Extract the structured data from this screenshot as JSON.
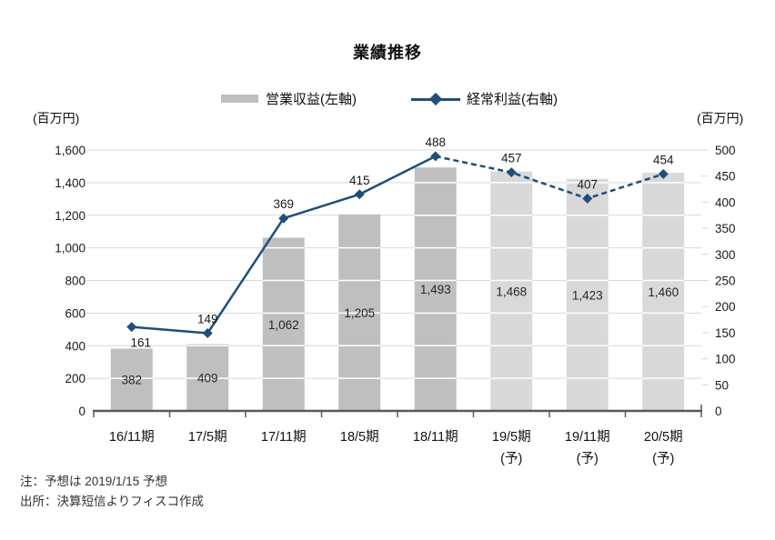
{
  "chart_data": {
    "type": "combo-bar-line",
    "title": "業績推移",
    "categories": [
      {
        "label": "16/11期",
        "sub": ""
      },
      {
        "label": "17/5期",
        "sub": ""
      },
      {
        "label": "17/11期",
        "sub": ""
      },
      {
        "label": "18/5期",
        "sub": ""
      },
      {
        "label": "18/11期",
        "sub": ""
      },
      {
        "label": "19/5期",
        "sub": "(予)"
      },
      {
        "label": "19/11期",
        "sub": "(予)"
      },
      {
        "label": "20/5期",
        "sub": "(予)"
      }
    ],
    "series": [
      {
        "name": "営業収益(左軸)",
        "type": "bar",
        "axis": "left",
        "values": [
          382,
          409,
          1062,
          1205,
          1493,
          1468,
          1423,
          1460
        ],
        "forecast_from_index": 5,
        "color_actual": "#bfbfbf",
        "color_forecast": "#d9d9d9"
      },
      {
        "name": "経常利益(右軸)",
        "type": "line",
        "axis": "right",
        "values": [
          161,
          149,
          369,
          415,
          488,
          457,
          407,
          454
        ],
        "dashed_from_index": 4,
        "label_below_indices": [
          0
        ],
        "color": "#1f4e79"
      }
    ],
    "left_axis": {
      "unit": "(百万円)",
      "min": 0,
      "max": 1600,
      "step": 200
    },
    "right_axis": {
      "unit": "(百万円)",
      "min": 0,
      "max": 500,
      "step": 50
    },
    "grid_color": "#d9d9d9",
    "axis_line_color": "#595959",
    "label_color": "#1a1a1a",
    "notes": [
      "注：予想は 2019/1/15 予想",
      "出所：決算短信よりフィスコ作成"
    ]
  }
}
